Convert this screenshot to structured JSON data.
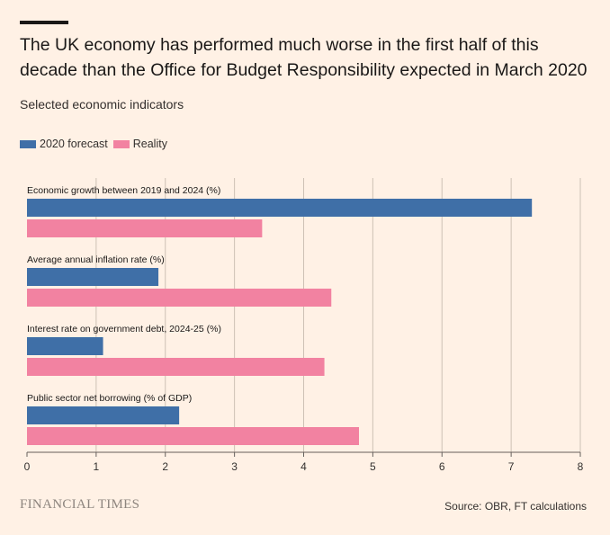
{
  "header": {
    "title": "The UK economy has performed much worse in the first half of this decade than the Office for Budget Responsibility expected in March 2020",
    "subtitle": "Selected economic indicators"
  },
  "legend": [
    {
      "label": "2020 forecast",
      "color": "#3F6FA7"
    },
    {
      "label": "Reality",
      "color": "#F282A1"
    }
  ],
  "chart_data": {
    "type": "bar",
    "orientation": "horizontal",
    "categories": [
      "Economic growth between 2019 and 2024 (%)",
      "Average annual inflation rate (%)",
      "Interest rate on government debt, 2024-25 (%)",
      "Public sector net borrowing (% of GDP)"
    ],
    "series": [
      {
        "name": "2020 forecast",
        "color": "#3F6FA7",
        "values": [
          7.3,
          1.9,
          1.1,
          2.2
        ]
      },
      {
        "name": "Reality",
        "color": "#F282A1",
        "values": [
          3.4,
          4.4,
          4.3,
          4.8
        ]
      }
    ],
    "xlim": [
      0,
      8
    ],
    "xticks": [
      "0",
      "1",
      "2",
      "3",
      "4",
      "5",
      "6",
      "7",
      "8"
    ],
    "grid": true,
    "legend_position": "top-left"
  },
  "footer": {
    "brand": "FINANCIAL TIMES",
    "source": "Source: OBR, FT calculations"
  }
}
